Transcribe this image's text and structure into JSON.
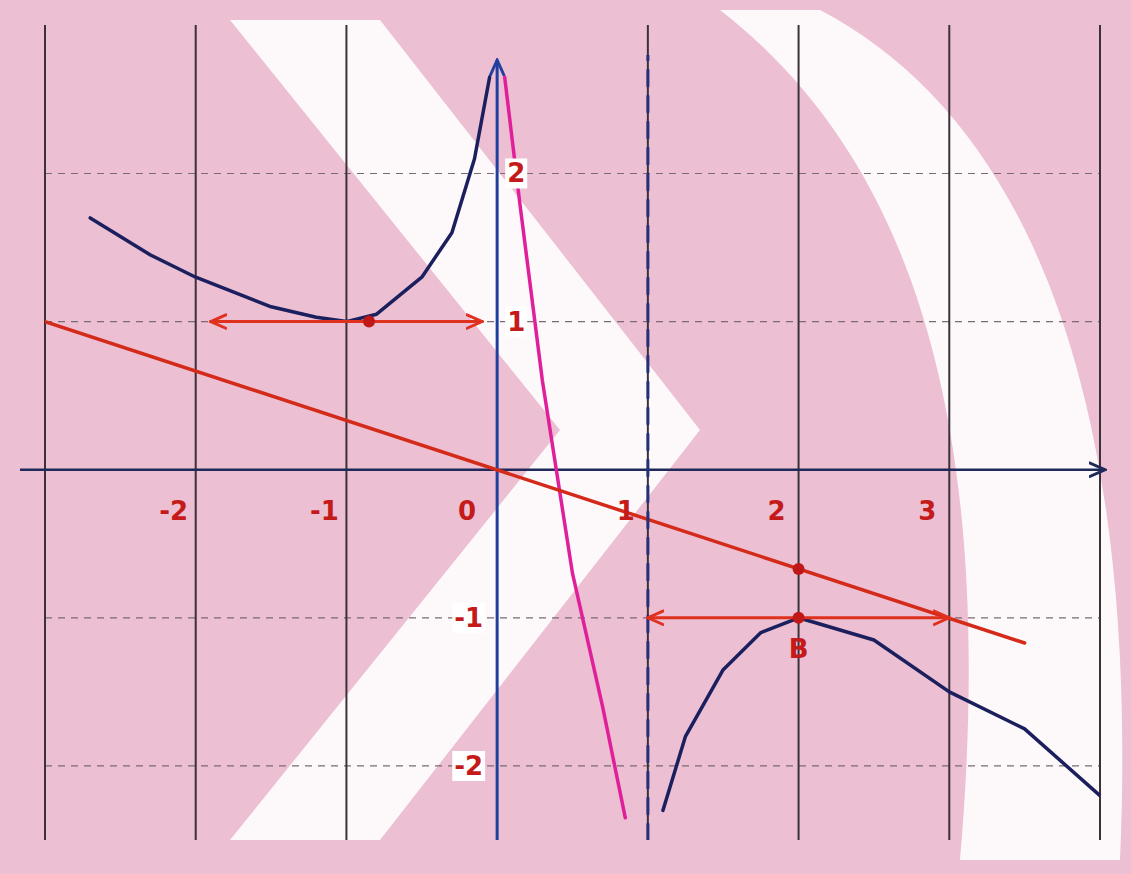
{
  "chart_data": {
    "type": "line",
    "xlim": [
      -3,
      4
    ],
    "ylim": [
      -2.5,
      2.8
    ],
    "xticks": [
      -2,
      -1,
      0,
      1,
      2,
      3
    ],
    "yticks": [
      -2,
      -1,
      1,
      2
    ],
    "grid": true,
    "series": [
      {
        "color": "#1c1f5e",
        "line_style": "solid",
        "x": [
          -2.7,
          -2.3,
          -2,
          -1.5,
          -1.2,
          -1,
          -0.8,
          -0.5,
          -0.3,
          -0.15,
          -0.05
        ],
        "values": [
          1.7,
          1.45,
          1.3,
          1.1,
          1.03,
          1.0,
          1.05,
          1.3,
          1.6,
          2.1,
          2.65
        ]
      },
      {
        "color": "#e0209a",
        "line_style": "solid",
        "x": [
          0.05,
          0.15,
          0.3,
          0.5,
          0.7,
          0.85
        ],
        "values": [
          2.65,
          1.8,
          0.6,
          -0.7,
          -1.6,
          -2.35
        ]
      },
      {
        "color": "#1c1f5e",
        "line_style": "solid",
        "x": [
          1.1,
          1.25,
          1.5,
          1.75,
          2,
          2.5,
          3,
          3.5,
          4
        ],
        "values": [
          -2.3,
          -1.8,
          -1.35,
          -1.1,
          -1.0,
          -1.15,
          -1.5,
          -1.75,
          -2.2
        ]
      },
      {
        "color": "#d42a1a",
        "line_style": "solid",
        "x": [
          -3,
          3.5
        ],
        "values": [
          1,
          -1.17
        ]
      },
      {
        "color": "#25307a",
        "line_style": "dashed",
        "x": [
          1,
          1
        ],
        "values": [
          -2.5,
          2.8
        ]
      },
      {
        "color": "#e0301e",
        "line_style": "solid",
        "marker": "arrow",
        "x": [
          -1.9,
          -0.1
        ],
        "values": [
          1,
          1
        ]
      },
      {
        "color": "#e0301e",
        "line_style": "solid",
        "marker": "arrow",
        "x": [
          1,
          3
        ],
        "values": [
          -1,
          -1
        ]
      },
      {
        "type": "scatter",
        "color": "#c01818",
        "marker": "circle",
        "x": [
          -0.85,
          2,
          2
        ],
        "values": [
          1,
          -0.67,
          -1
        ]
      }
    ],
    "annotations": [
      {
        "text": "B",
        "x": 2,
        "y": -1
      }
    ]
  }
}
